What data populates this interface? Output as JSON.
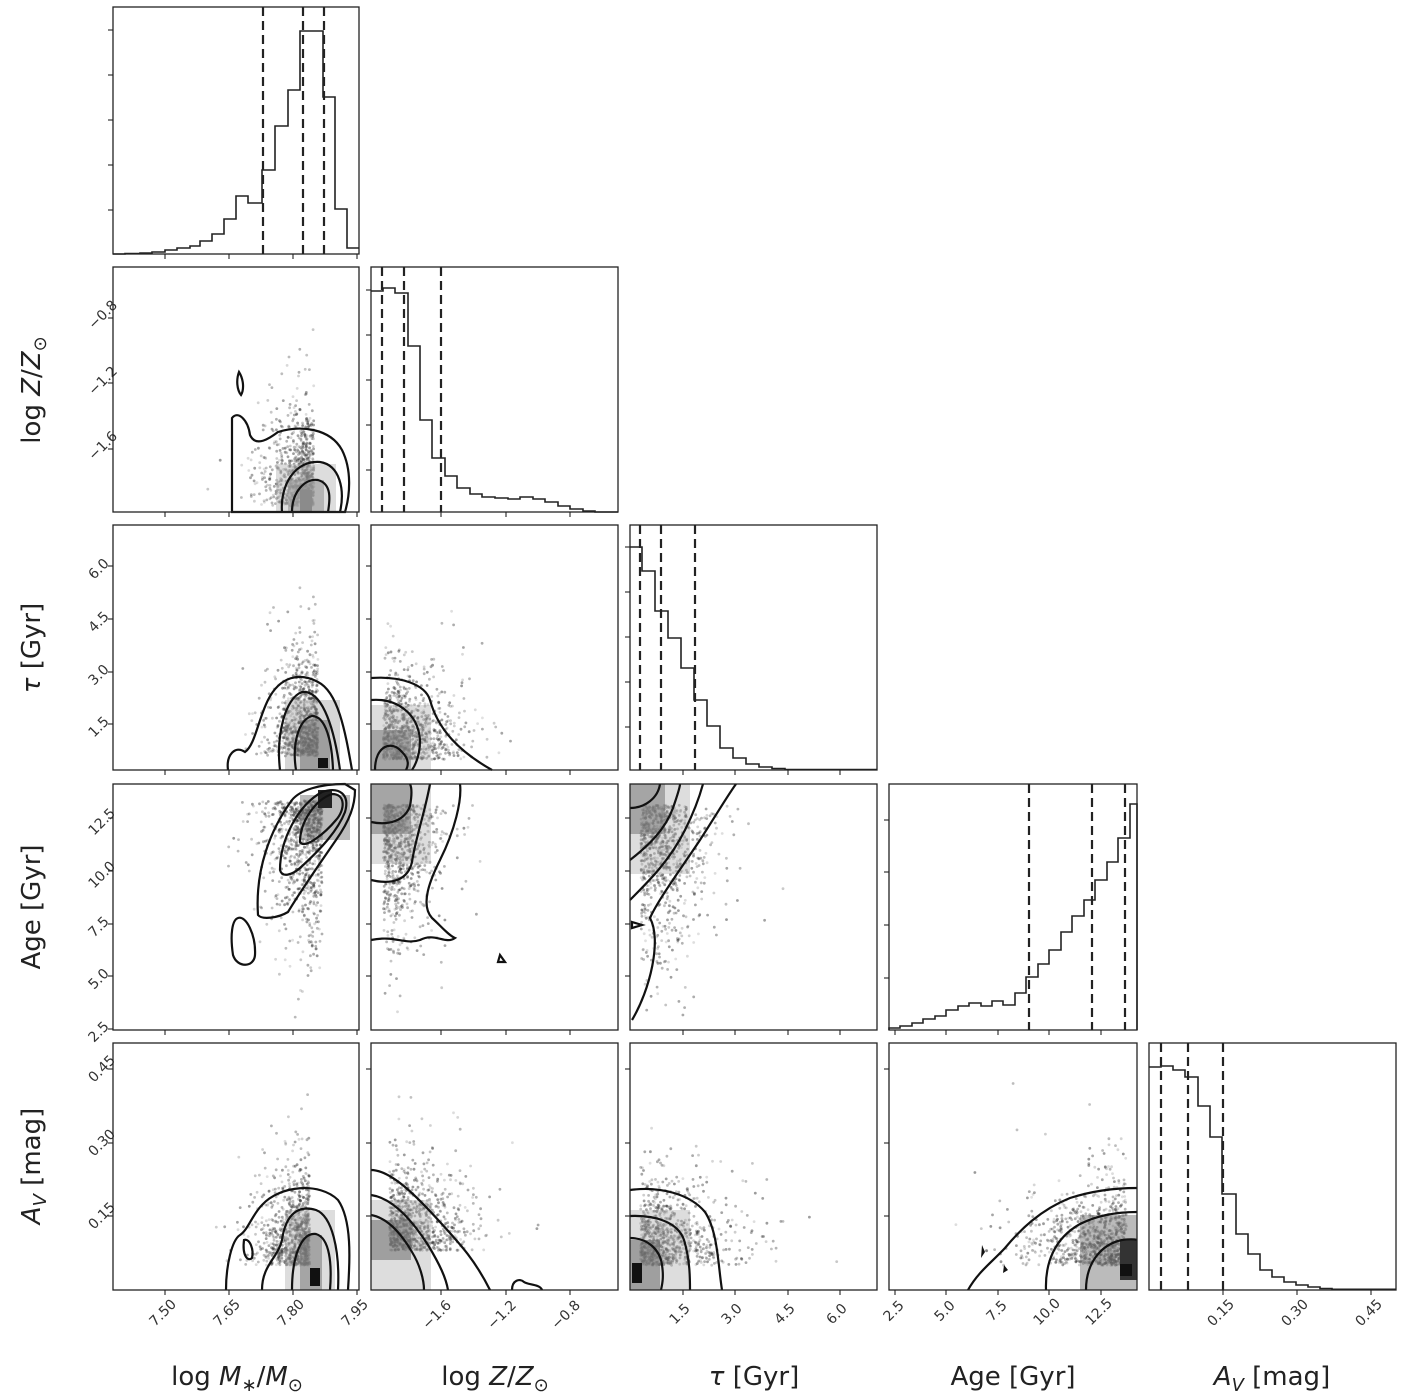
{
  "chart_data": {
    "type": "corner",
    "parameters": [
      {
        "key": "logM",
        "label": [
          "log ",
          "M",
          "∗",
          "/",
          "M",
          "⊙"
        ],
        "ticks": [
          7.5,
          7.65,
          7.8,
          7.95
        ],
        "tick_labels": [
          "7.50",
          "7.65",
          "7.80",
          "7.95"
        ],
        "range": [
          7.36,
          7.96
        ]
      },
      {
        "key": "logZ",
        "label": [
          "log ",
          "Z",
          "/",
          "Z",
          "⊙"
        ],
        "ticks": [
          -1.6,
          -1.2,
          -0.8
        ],
        "tick_labels": [
          "−1.6",
          "−1.2",
          "−0.8"
        ],
        "range": [
          -2.0,
          -0.4
        ]
      },
      {
        "key": "tau",
        "label": [
          "τ",
          " [Gyr]"
        ],
        "ticks": [
          1.5,
          3.0,
          4.5,
          6.0
        ],
        "tick_labels": [
          "1.5",
          "3.0",
          "4.5",
          "6.0"
        ],
        "range": [
          0.0,
          7.0
        ]
      },
      {
        "key": "age",
        "label": [
          "Age [Gyr]"
        ],
        "ticks": [
          2.5,
          5.0,
          7.5,
          10.0,
          12.5
        ],
        "tick_labels": [
          "2.5",
          "5.0",
          "7.5",
          "10.0",
          "12.5"
        ],
        "range": [
          2.2,
          14.0
        ]
      },
      {
        "key": "Av",
        "label": [
          "A",
          "V",
          " [mag]"
        ],
        "ticks": [
          0.15,
          0.3,
          0.45
        ],
        "tick_labels": [
          "0.15",
          "0.30",
          "0.45"
        ],
        "range": [
          0.0,
          0.5
        ]
      }
    ],
    "marginals": {
      "logM": {
        "quantiles": [
          7.74,
          7.83,
          7.88
        ],
        "counts": [
          0.2,
          0.4,
          0.7,
          1.1,
          1.6,
          2.3,
          3.4,
          5.2,
          8.0,
          12.5,
          16.5,
          15.0,
          22.0,
          35.0,
          57.0,
          75.0,
          76.0,
          50.0,
          16.0,
          2.0
        ]
      },
      "logZ": {
        "quantiles": [
          -1.96,
          -1.86,
          -1.68
        ],
        "counts": [
          90,
          92,
          89,
          70,
          38,
          24,
          12,
          8,
          6,
          5,
          4.5,
          4,
          3.8,
          4.2,
          4.0,
          3.6,
          3.0,
          2.0,
          1.5,
          0.8,
          0.3,
          0.1
        ]
      },
      "tau": {
        "quantiles": [
          0.2,
          0.8,
          1.7
        ],
        "counts": [
          95,
          82,
          66,
          54,
          42,
          30,
          20,
          12,
          7,
          4,
          2.5,
          1.5,
          1.0,
          0.6,
          0.3,
          0.2,
          0.1,
          0.05,
          0.02,
          0.01
        ]
      },
      "age": {
        "quantiles": [
          8.8,
          11.8,
          13.4
        ],
        "counts": [
          1,
          2,
          4,
          6,
          8,
          9,
          11,
          11.5,
          10,
          11,
          14,
          18,
          23,
          29,
          35,
          42,
          50,
          57,
          66,
          78,
          88,
          98
        ]
      },
      "Av": {
        "quantiles": [
          0.02,
          0.07,
          0.14
        ],
        "counts": [
          95,
          96,
          93,
          88,
          73,
          54,
          36,
          21,
          13,
          7.5,
          4.5,
          3,
          2,
          1.2,
          0.7,
          0.4,
          0.25,
          0.15,
          0.1,
          0.05
        ]
      }
    },
    "joint_modes": {
      "logZ|logM": {
        "center": [
          7.85,
          -1.96
        ],
        "spread": [
          0.05,
          0.25
        ]
      },
      "tau|logM": {
        "center": [
          7.86,
          0.4
        ],
        "spread": [
          0.05,
          1.2
        ]
      },
      "tau|logZ": {
        "center": [
          -1.92,
          0.3
        ],
        "spread": [
          0.2,
          1.0
        ]
      },
      "age|logM": {
        "center": [
          7.87,
          13.2
        ],
        "spread": [
          0.06,
          2.5
        ]
      },
      "age|logZ": {
        "center": [
          -1.92,
          13.0
        ],
        "spread": [
          0.15,
          2.5
        ]
      },
      "age|tau": {
        "center": [
          0.3,
          13.0
        ],
        "spread": [
          0.8,
          3.0
        ]
      },
      "Av|logM": {
        "center": [
          7.84,
          0.05
        ],
        "spread": [
          0.05,
          0.08
        ]
      },
      "Av|logZ": {
        "center": [
          -1.88,
          0.08
        ],
        "spread": [
          0.2,
          0.07
        ]
      },
      "Av|tau": {
        "center": [
          0.3,
          0.05
        ],
        "spread": [
          1.0,
          0.07
        ]
      },
      "Av|age": {
        "center": [
          13.5,
          0.05
        ],
        "spread": [
          2.0,
          0.07
        ]
      }
    }
  }
}
